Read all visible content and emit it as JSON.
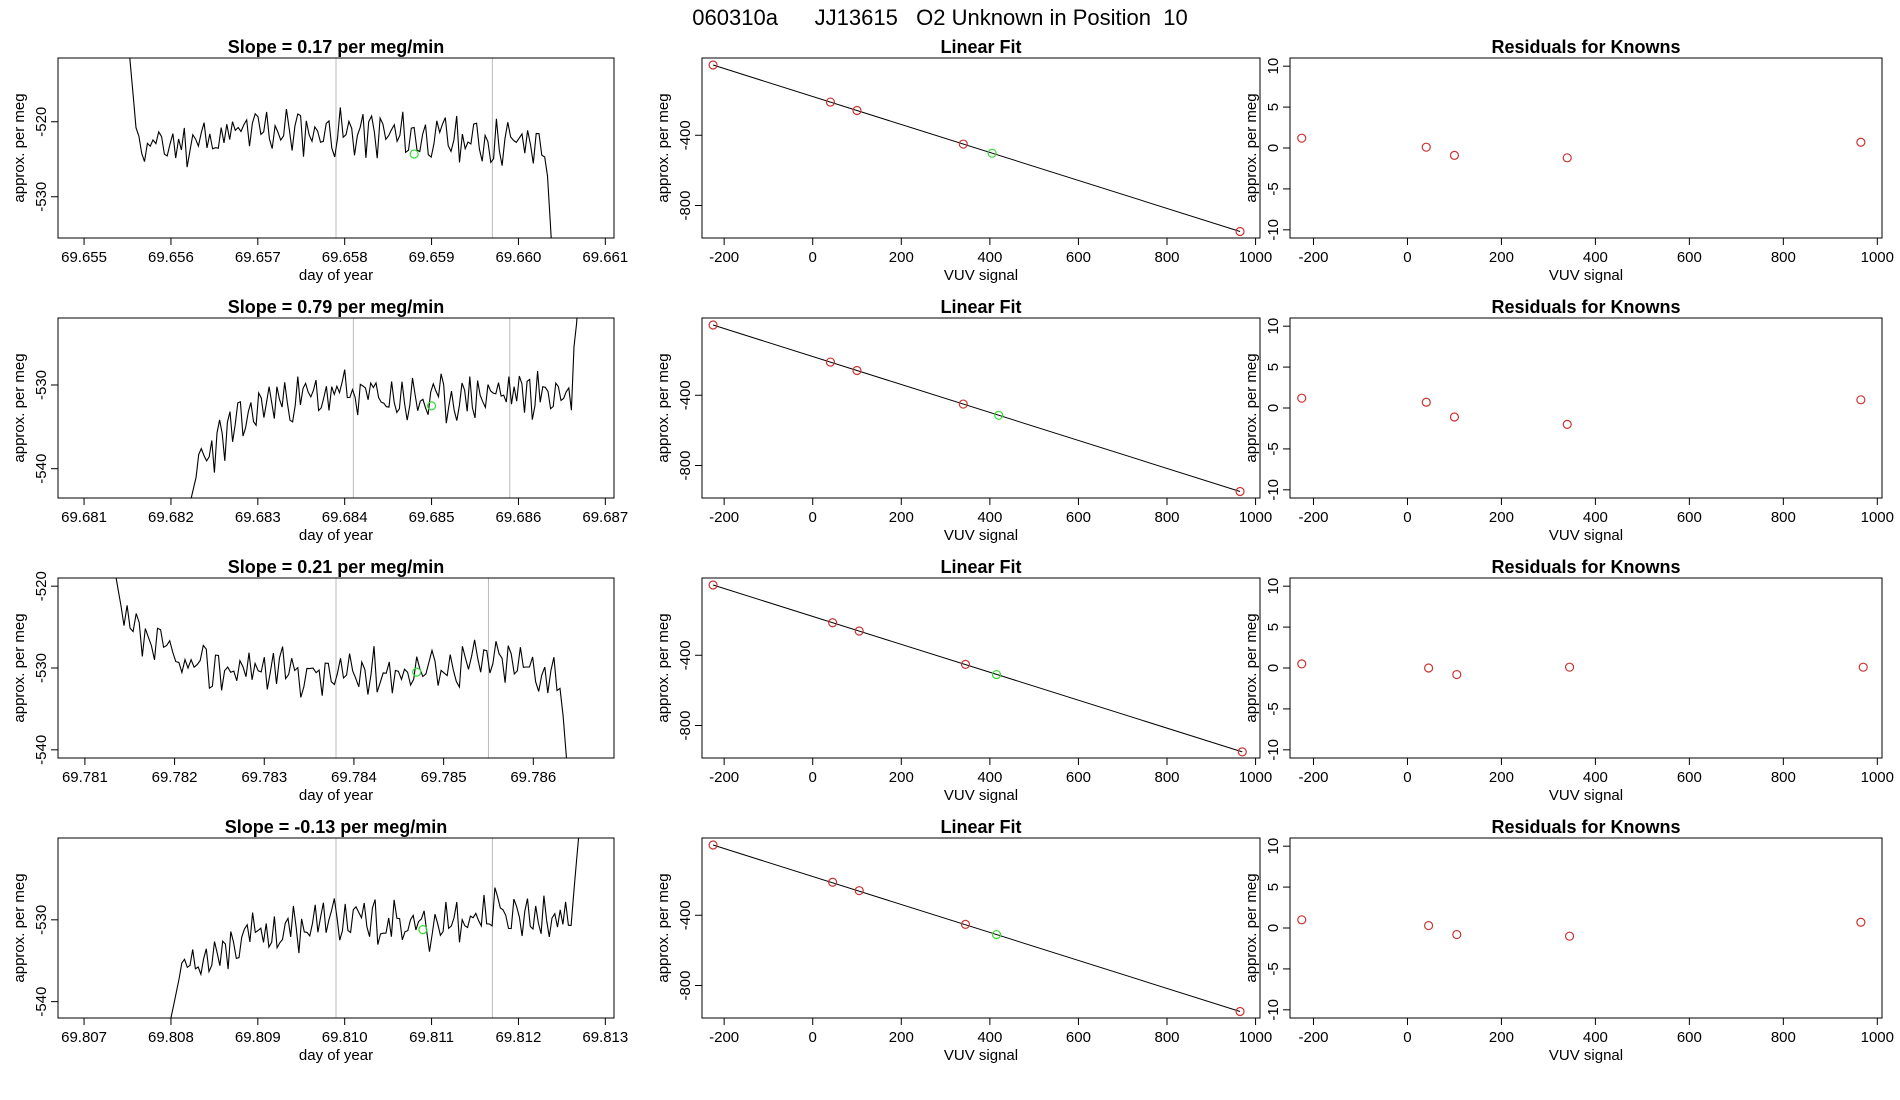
{
  "header": {
    "run_id": "060310a",
    "tank_id": "JJ13615",
    "description": "O2 Unknown in Position",
    "position": "10"
  },
  "colors": {
    "known": "#cc3333",
    "unknown": "#33dd33",
    "line": "#000000",
    "marker": "#bbbbbb"
  },
  "chart_data": [
    {
      "type": "line",
      "row": 1,
      "title": "Slope =  0.17  per meg/min",
      "xlabel": "day of year",
      "ylabel": "approx. per meg",
      "xlim": [
        69.6547,
        69.6611
      ],
      "ylim": [
        -535.5,
        -511.5
      ],
      "xticks": [
        69.655,
        69.656,
        69.657,
        69.658,
        69.659,
        69.66,
        69.661
      ],
      "xtick_labels": [
        "69.655",
        "69.656",
        "69.657",
        "69.658",
        "69.659",
        "69.660",
        "69.661"
      ],
      "yticks": [
        -520,
        -530
      ],
      "ytick_labels": [
        "-520",
        "-530"
      ],
      "markers_x": [
        69.6579,
        69.6597
      ],
      "unknown_point": [
        69.6588,
        -524.3
      ],
      "trace": {
        "x_start": 69.6555,
        "x_end": 69.6604,
        "start_y": -508,
        "end_y": -540,
        "base": [
          -524,
          -521,
          -522,
          -523
        ],
        "noise": 2.4,
        "seed": 11
      }
    },
    {
      "type": "scatter",
      "row": 1,
      "title": "Linear Fit",
      "xlabel": "VUV signal",
      "ylabel": "approx. per meg",
      "xlim": [
        -250,
        1010
      ],
      "ylim": [
        -985,
        40
      ],
      "xticks": [
        -200,
        0,
        200,
        400,
        600,
        800,
        1000
      ],
      "xtick_labels": [
        "-200",
        "0",
        "200",
        "400",
        "600",
        "800",
        "1000"
      ],
      "yticks": [
        -400,
        -800
      ],
      "ytick_labels": [
        "-400",
        "-800"
      ],
      "fit_line": [
        [
          -225,
          0
        ],
        [
          965,
          -948
        ]
      ],
      "knowns": [
        [
          -225,
          0
        ],
        [
          40,
          -211
        ],
        [
          100,
          -259
        ],
        [
          340,
          -450
        ],
        [
          965,
          -948
        ]
      ],
      "unknown": [
        [
          405,
          -502
        ]
      ]
    },
    {
      "type": "scatter",
      "row": 1,
      "title": "Residuals for Knowns",
      "xlabel": "VUV signal",
      "ylabel": "approx. per meg",
      "xlim": [
        -250,
        1010
      ],
      "ylim": [
        -11,
        11
      ],
      "xticks": [
        -200,
        0,
        200,
        400,
        600,
        800,
        1000
      ],
      "xtick_labels": [
        "-200",
        "0",
        "200",
        "400",
        "600",
        "800",
        "1000"
      ],
      "yticks": [
        10,
        5,
        0,
        -5,
        -10
      ],
      "ytick_labels": [
        "10",
        "5",
        "0",
        "-5",
        "-10"
      ],
      "knowns": [
        [
          -225,
          1.2
        ],
        [
          40,
          0.1
        ],
        [
          100,
          -0.9
        ],
        [
          340,
          -1.2
        ],
        [
          965,
          0.7
        ]
      ]
    },
    {
      "type": "line",
      "row": 2,
      "title": "Slope =  0.79  per meg/min",
      "xlabel": "day of year",
      "ylabel": "approx. per meg",
      "xlim": [
        69.6807,
        69.6871
      ],
      "ylim": [
        -543.5,
        -522
      ],
      "xticks": [
        69.681,
        69.682,
        69.683,
        69.684,
        69.685,
        69.686,
        69.687
      ],
      "xtick_labels": [
        "69.681",
        "69.682",
        "69.683",
        "69.684",
        "69.685",
        "69.686",
        "69.687"
      ],
      "yticks": [
        -530,
        -540
      ],
      "ytick_labels": [
        "-530",
        "-540"
      ],
      "markers_x": [
        69.6841,
        69.6859
      ],
      "unknown_point": [
        69.685,
        -532.5
      ],
      "trace": {
        "x_start": 69.6822,
        "x_end": 69.6867,
        "start_y": -545,
        "end_y": -518,
        "base": [
          -540,
          -532,
          -531,
          -532,
          -531,
          -531
        ],
        "noise": 2.2,
        "seed": 23
      }
    },
    {
      "type": "scatter",
      "row": 2,
      "title": "Linear Fit",
      "xlabel": "VUV signal",
      "ylabel": "approx. per meg",
      "xlim": [
        -250,
        1010
      ],
      "ylim": [
        -985,
        40
      ],
      "xticks": [
        -200,
        0,
        200,
        400,
        600,
        800,
        1000
      ],
      "xtick_labels": [
        "-200",
        "0",
        "200",
        "400",
        "600",
        "800",
        "1000"
      ],
      "yticks": [
        -400,
        -800
      ],
      "ytick_labels": [
        "-400",
        "-800"
      ],
      "fit_line": [
        [
          -225,
          0
        ],
        [
          965,
          -948
        ]
      ],
      "knowns": [
        [
          -225,
          0
        ],
        [
          40,
          -211
        ],
        [
          100,
          -259
        ],
        [
          340,
          -450
        ],
        [
          965,
          -948
        ]
      ],
      "unknown": [
        [
          420,
          -514
        ]
      ]
    },
    {
      "type": "scatter",
      "row": 2,
      "title": "Residuals for Knowns",
      "xlabel": "VUV signal",
      "ylabel": "approx. per meg",
      "xlim": [
        -250,
        1010
      ],
      "ylim": [
        -11,
        11
      ],
      "xticks": [
        -200,
        0,
        200,
        400,
        600,
        800,
        1000
      ],
      "xtick_labels": [
        "-200",
        "0",
        "200",
        "400",
        "600",
        "800",
        "1000"
      ],
      "yticks": [
        10,
        5,
        0,
        -5,
        -10
      ],
      "ytick_labels": [
        "10",
        "5",
        "0",
        "-5",
        "-10"
      ],
      "knowns": [
        [
          -225,
          1.2
        ],
        [
          40,
          0.7
        ],
        [
          100,
          -1.1
        ],
        [
          340,
          -2.0
        ],
        [
          965,
          1.0
        ]
      ]
    },
    {
      "type": "line",
      "row": 3,
      "title": "Slope =  0.21  per meg/min",
      "xlabel": "day of year",
      "ylabel": "approx. per meg",
      "xlim": [
        69.7807,
        69.7869
      ],
      "ylim": [
        -541,
        -519
      ],
      "xticks": [
        69.781,
        69.782,
        69.783,
        69.784,
        69.785,
        69.786
      ],
      "xtick_labels": [
        "69.781",
        "69.782",
        "69.783",
        "69.784",
        "69.785",
        "69.786"
      ],
      "yticks": [
        -520,
        -530,
        -540
      ],
      "ytick_labels": [
        "-520",
        "-530",
        "-540"
      ],
      "markers_x": [
        69.7838,
        69.7855
      ],
      "unknown_point": [
        69.7847,
        -530.5
      ],
      "trace": {
        "x_start": 69.7813,
        "x_end": 69.7864,
        "start_y": -516,
        "end_y": -545,
        "base": [
          -524,
          -530,
          -530,
          -531,
          -530,
          -529,
          -531
        ],
        "noise": 2.2,
        "seed": 37
      }
    },
    {
      "type": "scatter",
      "row": 3,
      "title": "Linear Fit",
      "xlabel": "VUV signal",
      "ylabel": "approx. per meg",
      "xlim": [
        -250,
        1010
      ],
      "ylim": [
        -985,
        40
      ],
      "xticks": [
        -200,
        0,
        200,
        400,
        600,
        800,
        1000
      ],
      "xtick_labels": [
        "-200",
        "0",
        "200",
        "400",
        "600",
        "800",
        "1000"
      ],
      "yticks": [
        -400,
        -800
      ],
      "ytick_labels": [
        "-400",
        "-800"
      ],
      "fit_line": [
        [
          -225,
          0
        ],
        [
          970,
          -950
        ]
      ],
      "knowns": [
        [
          -225,
          0
        ],
        [
          45,
          -215
        ],
        [
          105,
          -262
        ],
        [
          345,
          -452
        ],
        [
          970,
          -950
        ]
      ],
      "unknown": [
        [
          415,
          -510
        ]
      ]
    },
    {
      "type": "scatter",
      "row": 3,
      "title": "Residuals for Knowns",
      "xlabel": "VUV signal",
      "ylabel": "approx. per meg",
      "xlim": [
        -250,
        1010
      ],
      "ylim": [
        -11,
        11
      ],
      "xticks": [
        -200,
        0,
        200,
        400,
        600,
        800,
        1000
      ],
      "xtick_labels": [
        "-200",
        "0",
        "200",
        "400",
        "600",
        "800",
        "1000"
      ],
      "yticks": [
        10,
        5,
        0,
        -5,
        -10
      ],
      "ytick_labels": [
        "10",
        "5",
        "0",
        "-5",
        "-10"
      ],
      "knowns": [
        [
          -225,
          0.5
        ],
        [
          45,
          0.0
        ],
        [
          105,
          -0.8
        ],
        [
          345,
          0.1
        ],
        [
          970,
          0.1
        ]
      ]
    },
    {
      "type": "line",
      "row": 4,
      "title": "Slope =  -0.13  per meg/min",
      "xlabel": "day of year",
      "ylabel": "approx. per meg",
      "xlim": [
        69.8067,
        69.8131
      ],
      "ylim": [
        -542,
        -520
      ],
      "xticks": [
        69.807,
        69.808,
        69.809,
        69.81,
        69.811,
        69.812,
        69.813
      ],
      "xtick_labels": [
        "69.807",
        "69.808",
        "69.809",
        "69.810",
        "69.811",
        "69.812",
        "69.813"
      ],
      "yticks": [
        -530,
        -540
      ],
      "ytick_labels": [
        "-530",
        "-540"
      ],
      "markers_x": [
        69.8099,
        69.8117
      ],
      "unknown_point": [
        69.8109,
        -531.2
      ],
      "trace": {
        "x_start": 69.808,
        "x_end": 69.8127,
        "start_y": -542,
        "end_y": -519,
        "base": [
          -536,
          -532,
          -530,
          -531,
          -529,
          -530
        ],
        "noise": 2.2,
        "seed": 53
      }
    },
    {
      "type": "scatter",
      "row": 4,
      "title": "Linear Fit",
      "xlabel": "VUV signal",
      "ylabel": "approx. per meg",
      "xlim": [
        -250,
        1010
      ],
      "ylim": [
        -985,
        40
      ],
      "xticks": [
        -200,
        0,
        200,
        400,
        600,
        800,
        1000
      ],
      "xtick_labels": [
        "-200",
        "0",
        "200",
        "400",
        "600",
        "800",
        "1000"
      ],
      "yticks": [
        -400,
        -800
      ],
      "ytick_labels": [
        "-400",
        "-800"
      ],
      "fit_line": [
        [
          -225,
          0
        ],
        [
          965,
          -948
        ]
      ],
      "knowns": [
        [
          -225,
          0
        ],
        [
          45,
          -212
        ],
        [
          105,
          -260
        ],
        [
          345,
          -452
        ],
        [
          965,
          -948
        ]
      ],
      "unknown": [
        [
          415,
          -510
        ]
      ]
    },
    {
      "type": "scatter",
      "row": 4,
      "title": "Residuals for Knowns",
      "xlabel": "VUV signal",
      "ylabel": "approx. per meg",
      "xlim": [
        -250,
        1010
      ],
      "ylim": [
        -11,
        11
      ],
      "xticks": [
        -200,
        0,
        200,
        400,
        600,
        800,
        1000
      ],
      "xtick_labels": [
        "-200",
        "0",
        "200",
        "400",
        "600",
        "800",
        "1000"
      ],
      "yticks": [
        10,
        5,
        0,
        -5,
        -10
      ],
      "ytick_labels": [
        "10",
        "5",
        "0",
        "-5",
        "-10"
      ],
      "knowns": [
        [
          -225,
          1.0
        ],
        [
          45,
          0.3
        ],
        [
          105,
          -0.8
        ],
        [
          345,
          -1.0
        ],
        [
          965,
          0.7
        ]
      ]
    }
  ]
}
